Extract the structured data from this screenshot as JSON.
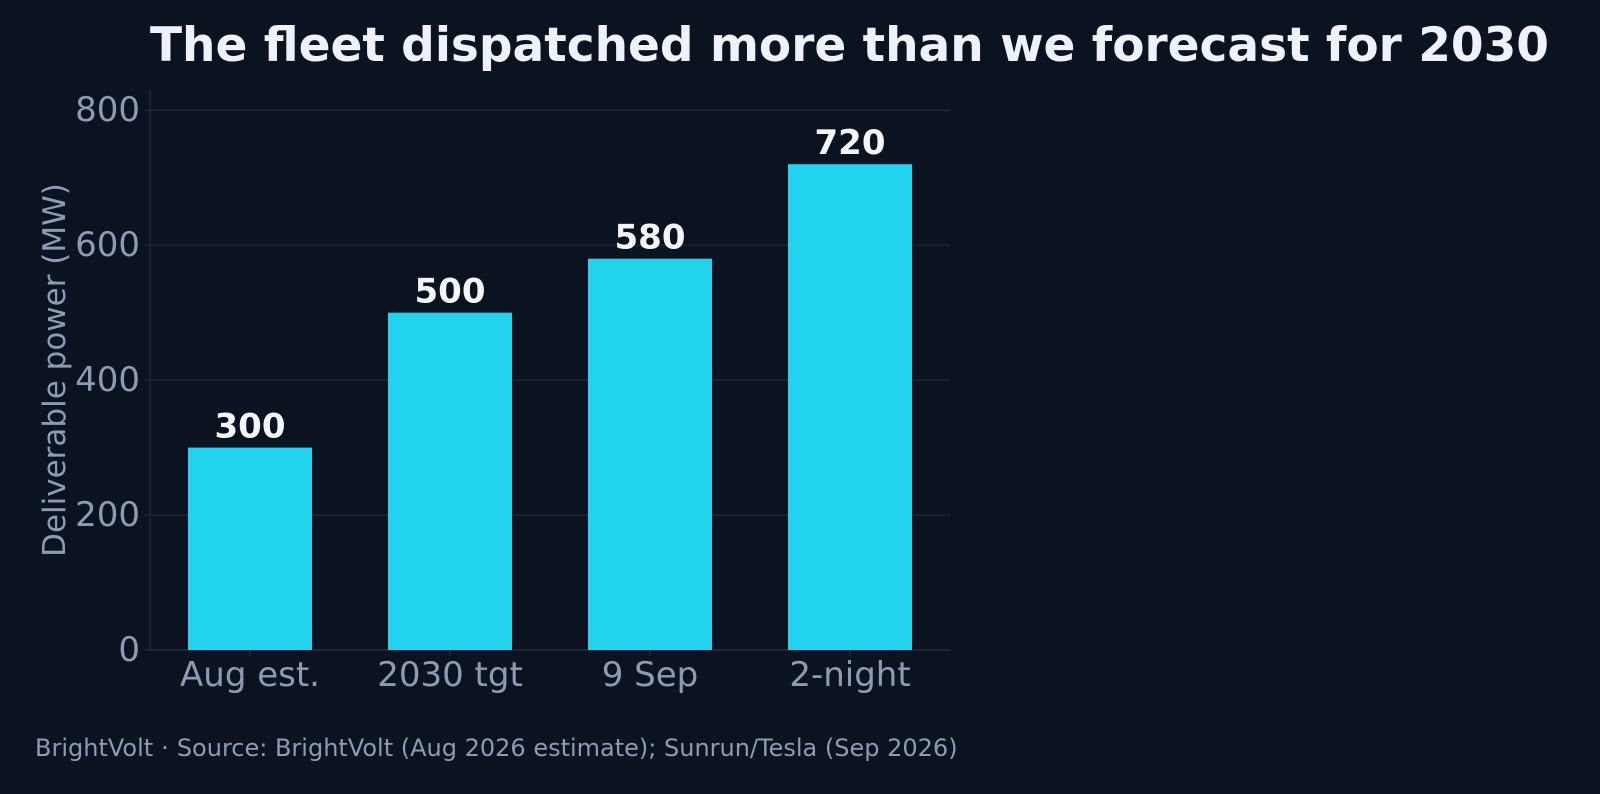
{
  "footer": {
    "brand": "BrightVolt",
    "separator": "·",
    "source": "Source: BrightVolt (Aug 2026 estimate); Sunrun/Tesla (Sep 2026)"
  },
  "colors": {
    "background": "#0c1320",
    "bar": "#22d3ee",
    "title": "#eef2fa",
    "axis_text": "#8e9bb4",
    "grid": "#1f2b40",
    "data_label": "#f3f6fc"
  },
  "chart_data": {
    "type": "bar",
    "title": "The fleet dispatched more than we forecast for 2030",
    "xlabel": "",
    "ylabel": "Deliverable power (MW)",
    "categories": [
      "Aug est.",
      "2030 tgt",
      "9 Sep",
      "2-night"
    ],
    "values": [
      300,
      500,
      580,
      720
    ],
    "data_labels": [
      "300",
      "500",
      "580",
      "720"
    ],
    "ylim": [
      0,
      830
    ],
    "yticks": [
      0,
      200,
      400,
      600,
      800
    ],
    "ytick_labels": [
      "0",
      "200",
      "400",
      "600",
      "800"
    ],
    "grid": true,
    "grid_axis": "y",
    "legend": false
  }
}
